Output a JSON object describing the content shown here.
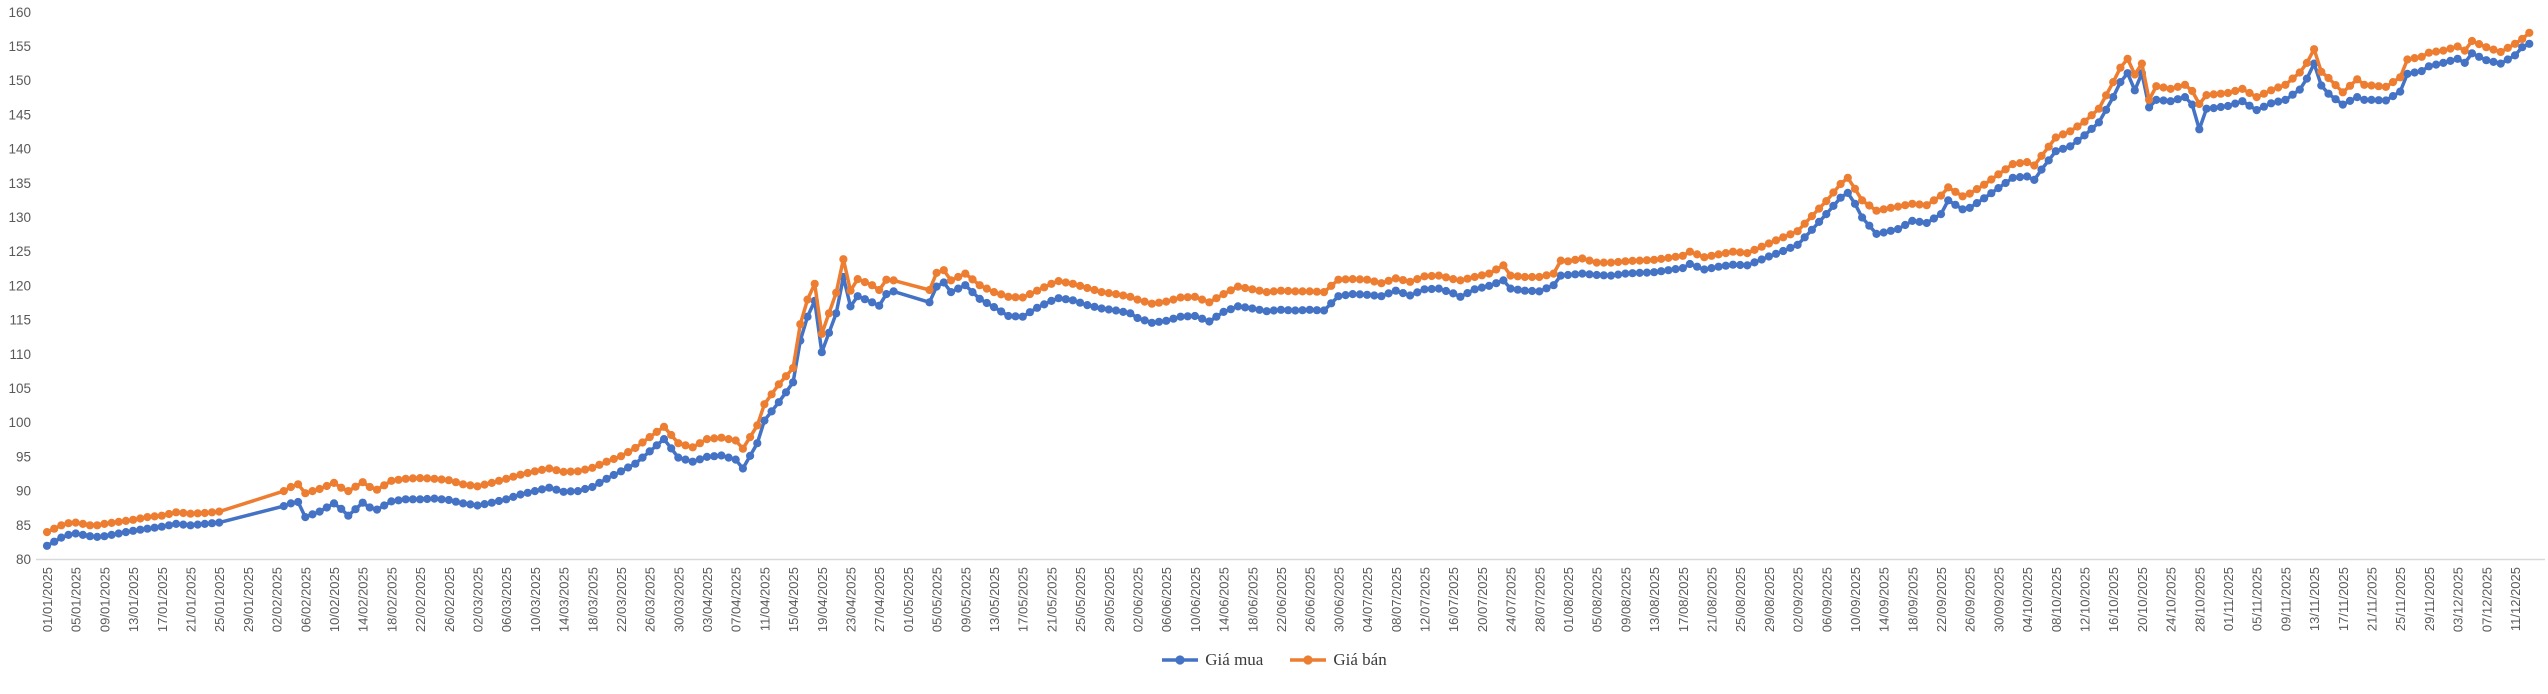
{
  "chart_data": {
    "type": "line",
    "grid": false,
    "legend_position": "bottom-center",
    "ylim": [
      80,
      160
    ],
    "y_ticks": [
      80,
      85,
      90,
      95,
      100,
      105,
      110,
      115,
      120,
      125,
      130,
      135,
      140,
      145,
      150,
      155,
      160
    ],
    "x_tick_step_days": 4,
    "x_tick_labels": [
      "01/01/2025",
      "05/01/2025",
      "09/01/2025",
      "13/01/2025",
      "17/01/2025",
      "21/01/2025",
      "25/01/2025",
      "29/01/2025",
      "02/02/2025",
      "06/02/2025",
      "10/02/2025",
      "14/02/2025",
      "18/02/2025",
      "22/02/2025",
      "26/02/2025",
      "02/03/2025",
      "06/03/2025",
      "10/03/2025",
      "14/03/2025",
      "18/03/2025",
      "22/03/2025",
      "26/03/2025",
      "30/03/2025",
      "03/04/2025",
      "07/04/2025",
      "11/04/2025",
      "15/04/2025",
      "19/04/2025",
      "23/04/2025",
      "27/04/2025",
      "01/05/2025",
      "05/05/2025",
      "09/05/2025",
      "13/05/2025",
      "17/05/2025",
      "21/05/2025",
      "25/05/2025",
      "29/05/2025",
      "02/06/2025",
      "06/06/2025",
      "10/06/2025",
      "14/06/2025",
      "18/06/2025",
      "22/06/2025",
      "26/06/2025",
      "30/06/2025",
      "04/07/2025",
      "08/07/2025",
      "12/07/2025",
      "16/07/2025",
      "20/07/2025",
      "24/07/2025",
      "28/07/2025",
      "01/08/2025",
      "05/08/2025",
      "09/08/2025",
      "13/08/2025",
      "17/08/2025",
      "21/08/2025",
      "25/08/2025",
      "29/08/2025",
      "02/09/2025",
      "06/09/2025",
      "10/09/2025",
      "14/09/2025",
      "18/09/2025",
      "22/09/2025",
      "26/09/2025",
      "30/09/2025",
      "04/10/2025",
      "08/10/2025",
      "12/10/2025",
      "16/10/2025",
      "20/10/2025",
      "24/10/2025",
      "28/10/2025",
      "01/11/2025",
      "05/11/2025",
      "09/11/2025",
      "13/11/2025",
      "17/11/2025",
      "21/11/2025",
      "25/11/2025",
      "29/11/2025",
      "03/12/2025",
      "07/12/2025",
      "11/12/2025"
    ],
    "series": [
      {
        "name": "Giá mua",
        "color": "#4472C4"
      },
      {
        "name": "Giá bán",
        "color": "#ED7D31"
      }
    ],
    "points_format": [
      "day_offset_from_01_01_2025",
      "gia_mua",
      "gia_ban"
    ],
    "points": [
      [
        0,
        82.0,
        84.0
      ],
      [
        1,
        82.6,
        84.5
      ],
      [
        2,
        83.2,
        85.0
      ],
      [
        3,
        83.6,
        85.3
      ],
      [
        4,
        83.8,
        85.4
      ],
      [
        5,
        83.6,
        85.2
      ],
      [
        6,
        83.4,
        85.0
      ],
      [
        7,
        83.3,
        85.0
      ],
      [
        8,
        83.4,
        85.2
      ],
      [
        10,
        83.8,
        85.5
      ],
      [
        12,
        84.2,
        85.8
      ],
      [
        14,
        84.5,
        86.2
      ],
      [
        16,
        84.8,
        86.4
      ],
      [
        18,
        85.2,
        86.9
      ],
      [
        20,
        85.0,
        86.7
      ],
      [
        22,
        85.2,
        86.8
      ],
      [
        24,
        85.4,
        87.0
      ],
      [
        33,
        87.8,
        90.0
      ],
      [
        34,
        88.2,
        90.6
      ],
      [
        35,
        88.4,
        91.0
      ],
      [
        36,
        86.2,
        89.7
      ],
      [
        38,
        87.0,
        90.3
      ],
      [
        40,
        88.2,
        91.2
      ],
      [
        41,
        87.4,
        90.5
      ],
      [
        42,
        86.4,
        90.0
      ],
      [
        44,
        88.3,
        91.3
      ],
      [
        45,
        87.6,
        90.6
      ],
      [
        46,
        87.3,
        90.2
      ],
      [
        48,
        88.5,
        91.5
      ],
      [
        50,
        88.8,
        91.8
      ],
      [
        52,
        88.8,
        91.9
      ],
      [
        54,
        88.9,
        91.8
      ],
      [
        56,
        88.7,
        91.6
      ],
      [
        58,
        88.2,
        91.0
      ],
      [
        60,
        87.9,
        90.7
      ],
      [
        62,
        88.3,
        91.2
      ],
      [
        64,
        88.8,
        91.8
      ],
      [
        66,
        89.5,
        92.4
      ],
      [
        68,
        90.0,
        92.9
      ],
      [
        70,
        90.5,
        93.3
      ],
      [
        72,
        89.9,
        92.8
      ],
      [
        74,
        90.0,
        92.9
      ],
      [
        76,
        90.6,
        93.4
      ],
      [
        78,
        91.8,
        94.3
      ],
      [
        80,
        92.9,
        95.1
      ],
      [
        82,
        94.0,
        96.3
      ],
      [
        84,
        95.8,
        97.9
      ],
      [
        86,
        97.6,
        99.4
      ],
      [
        88,
        94.9,
        97.0
      ],
      [
        90,
        94.3,
        96.4
      ],
      [
        92,
        95.0,
        97.6
      ],
      [
        94,
        95.2,
        97.8
      ],
      [
        96,
        94.6,
        97.4
      ],
      [
        97,
        93.3,
        96.2
      ],
      [
        99,
        97.0,
        99.6
      ],
      [
        100,
        100.3,
        102.7
      ],
      [
        102,
        103.0,
        105.6
      ],
      [
        104,
        105.9,
        108.0
      ],
      [
        105,
        112.0,
        114.4
      ],
      [
        106,
        115.5,
        118.0
      ],
      [
        107,
        117.8,
        120.3
      ],
      [
        108,
        110.3,
        113.0
      ],
      [
        110,
        116.0,
        119.0
      ],
      [
        111,
        121.3,
        123.9
      ],
      [
        112,
        117.0,
        119.3
      ],
      [
        113,
        118.5,
        121.0
      ],
      [
        115,
        117.6,
        120.1
      ],
      [
        116,
        117.1,
        119.4
      ],
      [
        117,
        118.8,
        120.9
      ],
      [
        118,
        119.2,
        120.8
      ],
      [
        123,
        117.6,
        119.4
      ],
      [
        124,
        119.9,
        121.9
      ],
      [
        125,
        120.5,
        122.3
      ],
      [
        126,
        119.1,
        120.8
      ],
      [
        128,
        120.1,
        121.8
      ],
      [
        130,
        118.1,
        120.1
      ],
      [
        132,
        116.9,
        119.1
      ],
      [
        134,
        115.6,
        118.4
      ],
      [
        136,
        115.5,
        118.3
      ],
      [
        138,
        116.8,
        119.3
      ],
      [
        140,
        117.8,
        120.3
      ],
      [
        141,
        118.2,
        120.7
      ],
      [
        143,
        117.9,
        120.3
      ],
      [
        145,
        117.2,
        119.7
      ],
      [
        147,
        116.7,
        119.1
      ],
      [
        149,
        116.4,
        118.8
      ],
      [
        151,
        116.0,
        118.4
      ],
      [
        152,
        115.3,
        118.0
      ],
      [
        154,
        114.6,
        117.4
      ],
      [
        156,
        114.9,
        117.7
      ],
      [
        158,
        115.5,
        118.3
      ],
      [
        160,
        115.6,
        118.4
      ],
      [
        162,
        114.8,
        117.6
      ],
      [
        164,
        116.2,
        118.8
      ],
      [
        166,
        117.0,
        119.9
      ],
      [
        168,
        116.7,
        119.5
      ],
      [
        170,
        116.3,
        119.1
      ],
      [
        172,
        116.5,
        119.3
      ],
      [
        174,
        116.4,
        119.2
      ],
      [
        176,
        116.5,
        119.2
      ],
      [
        178,
        116.4,
        119.1
      ],
      [
        180,
        118.5,
        120.9
      ],
      [
        182,
        118.8,
        121.0
      ],
      [
        184,
        118.7,
        120.9
      ],
      [
        186,
        118.5,
        120.4
      ],
      [
        188,
        119.3,
        121.1
      ],
      [
        190,
        118.6,
        120.6
      ],
      [
        192,
        119.5,
        121.4
      ],
      [
        194,
        119.6,
        121.5
      ],
      [
        196,
        118.9,
        121.0
      ],
      [
        197,
        118.4,
        120.8
      ],
      [
        199,
        119.5,
        121.3
      ],
      [
        201,
        120.0,
        121.8
      ],
      [
        203,
        120.8,
        123.0
      ],
      [
        204,
        119.6,
        121.5
      ],
      [
        206,
        119.3,
        121.3
      ],
      [
        208,
        119.2,
        121.3
      ],
      [
        210,
        120.1,
        121.8
      ],
      [
        211,
        121.5,
        123.7
      ],
      [
        212,
        121.6,
        123.6
      ],
      [
        214,
        121.8,
        124.0
      ],
      [
        216,
        121.6,
        123.4
      ],
      [
        218,
        121.5,
        123.4
      ],
      [
        220,
        121.8,
        123.6
      ],
      [
        222,
        121.9,
        123.7
      ],
      [
        224,
        122.0,
        123.8
      ],
      [
        226,
        122.3,
        124.1
      ],
      [
        228,
        122.6,
        124.4
      ],
      [
        229,
        123.2,
        125.0
      ],
      [
        231,
        122.4,
        124.2
      ],
      [
        233,
        122.8,
        124.6
      ],
      [
        235,
        123.1,
        125.0
      ],
      [
        237,
        123.0,
        124.8
      ],
      [
        240,
        124.3,
        126.2
      ],
      [
        242,
        125.1,
        127.1
      ],
      [
        244,
        126.0,
        128.0
      ],
      [
        246,
        128.2,
        130.2
      ],
      [
        248,
        130.5,
        132.4
      ],
      [
        250,
        132.9,
        134.9
      ],
      [
        251,
        133.6,
        135.8
      ],
      [
        252,
        132.0,
        134.2
      ],
      [
        253,
        130.0,
        132.5
      ],
      [
        255,
        127.6,
        131.0
      ],
      [
        256,
        127.8,
        131.2
      ],
      [
        258,
        128.3,
        131.6
      ],
      [
        260,
        129.5,
        132.0
      ],
      [
        262,
        129.2,
        131.8
      ],
      [
        264,
        130.5,
        133.2
      ],
      [
        265,
        132.5,
        134.4
      ],
      [
        267,
        131.2,
        133.1
      ],
      [
        268,
        131.4,
        133.5
      ],
      [
        270,
        132.8,
        134.8
      ],
      [
        272,
        134.3,
        136.3
      ],
      [
        274,
        135.8,
        137.8
      ],
      [
        276,
        136.0,
        138.1
      ],
      [
        277,
        135.5,
        137.6
      ],
      [
        278,
        137.0,
        139.0
      ],
      [
        280,
        139.7,
        141.7
      ],
      [
        282,
        140.4,
        142.6
      ],
      [
        284,
        142.0,
        144.0
      ],
      [
        286,
        143.9,
        145.9
      ],
      [
        288,
        147.6,
        149.8
      ],
      [
        289,
        149.8,
        151.9
      ],
      [
        290,
        151.1,
        153.2
      ],
      [
        291,
        148.6,
        150.9
      ],
      [
        292,
        151.1,
        152.5
      ],
      [
        293,
        146.1,
        147.2
      ],
      [
        294,
        147.2,
        149.2
      ],
      [
        296,
        147.0,
        148.8
      ],
      [
        298,
        147.6,
        149.4
      ],
      [
        299,
        146.5,
        148.5
      ],
      [
        300,
        142.9,
        146.6
      ],
      [
        301,
        145.9,
        147.9
      ],
      [
        302,
        146.0,
        148.0
      ],
      [
        304,
        146.3,
        148.2
      ],
      [
        306,
        147.0,
        148.8
      ],
      [
        308,
        145.7,
        147.6
      ],
      [
        310,
        146.7,
        148.6
      ],
      [
        312,
        147.2,
        149.4
      ],
      [
        314,
        148.7,
        151.2
      ],
      [
        315,
        150.3,
        152.6
      ],
      [
        316,
        152.5,
        154.6
      ],
      [
        317,
        149.3,
        151.3
      ],
      [
        318,
        148.1,
        150.4
      ],
      [
        320,
        146.5,
        148.3
      ],
      [
        322,
        147.6,
        150.2
      ],
      [
        323,
        147.2,
        149.4
      ],
      [
        324,
        147.2,
        149.3
      ],
      [
        326,
        147.1,
        149.1
      ],
      [
        328,
        148.4,
        150.5
      ],
      [
        329,
        151.0,
        153.1
      ],
      [
        331,
        151.4,
        153.5
      ],
      [
        332,
        152.1,
        154.1
      ],
      [
        334,
        152.6,
        154.4
      ],
      [
        336,
        153.2,
        155.0
      ],
      [
        337,
        152.6,
        154.4
      ],
      [
        338,
        154.0,
        155.8
      ],
      [
        340,
        153.0,
        154.9
      ],
      [
        342,
        152.5,
        154.2
      ],
      [
        344,
        153.7,
        155.4
      ],
      [
        345,
        154.9,
        156.1
      ],
      [
        346,
        155.4,
        157.0
      ]
    ],
    "data_gaps_days": [
      [
        24,
        33
      ],
      [
        118,
        123
      ]
    ]
  },
  "colors": {
    "background": "#FFFFFF",
    "axis_line": "#D9D9D9",
    "tick_text": "#595959",
    "legend_text": "#3B3B3B",
    "series_mua": "#4472C4",
    "series_ban": "#ED7D31"
  }
}
